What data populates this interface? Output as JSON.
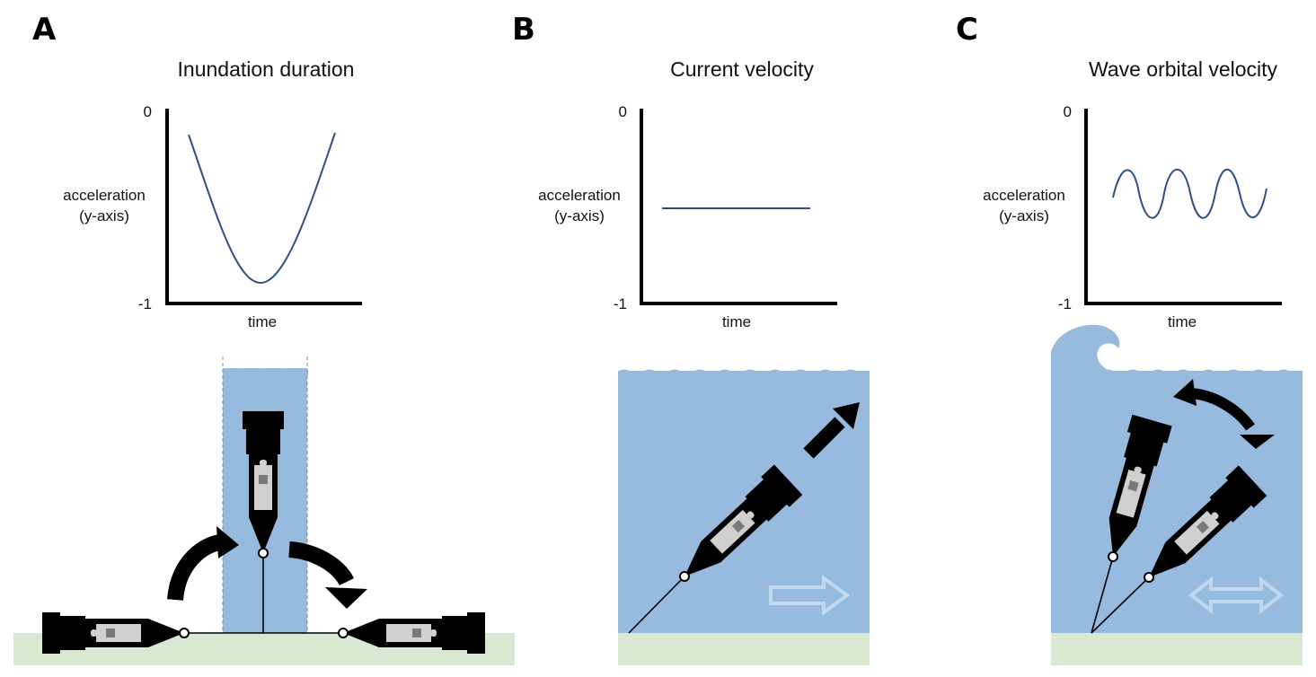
{
  "panels": [
    {
      "letter": "A",
      "title": "Inundation duration",
      "ytick_top": "0",
      "ytick_bottom": "-1",
      "ylabel_line1": "acceleration",
      "ylabel_line2": "(y-axis)",
      "xlabel": "time"
    },
    {
      "letter": "B",
      "title": "Current velocity",
      "ytick_top": "0",
      "ytick_bottom": "-1",
      "ylabel_line1": "acceleration",
      "ylabel_line2": "(y-axis)",
      "xlabel": "time"
    },
    {
      "letter": "C",
      "title": "Wave orbital velocity",
      "ytick_top": "0",
      "ytick_bottom": "-1",
      "ylabel_line1": "acceleration",
      "ylabel_line2": "(y-axis)",
      "xlabel": "time"
    }
  ],
  "colors": {
    "curve": "#2f4f8a",
    "water": "#96bbdf",
    "ground": "#d9e9d1",
    "sensor_body": "#000000",
    "sensor_window": "#d0d0d0",
    "flow_arrow": "#c2d8ee"
  },
  "icons": {
    "rotation_arrow": "curved-arrow-icon",
    "flow_direction": "right-arrow-icon",
    "oscillating_flow": "double-headed-arrow-icon",
    "breaking_wave": "wave-crest-icon"
  }
}
